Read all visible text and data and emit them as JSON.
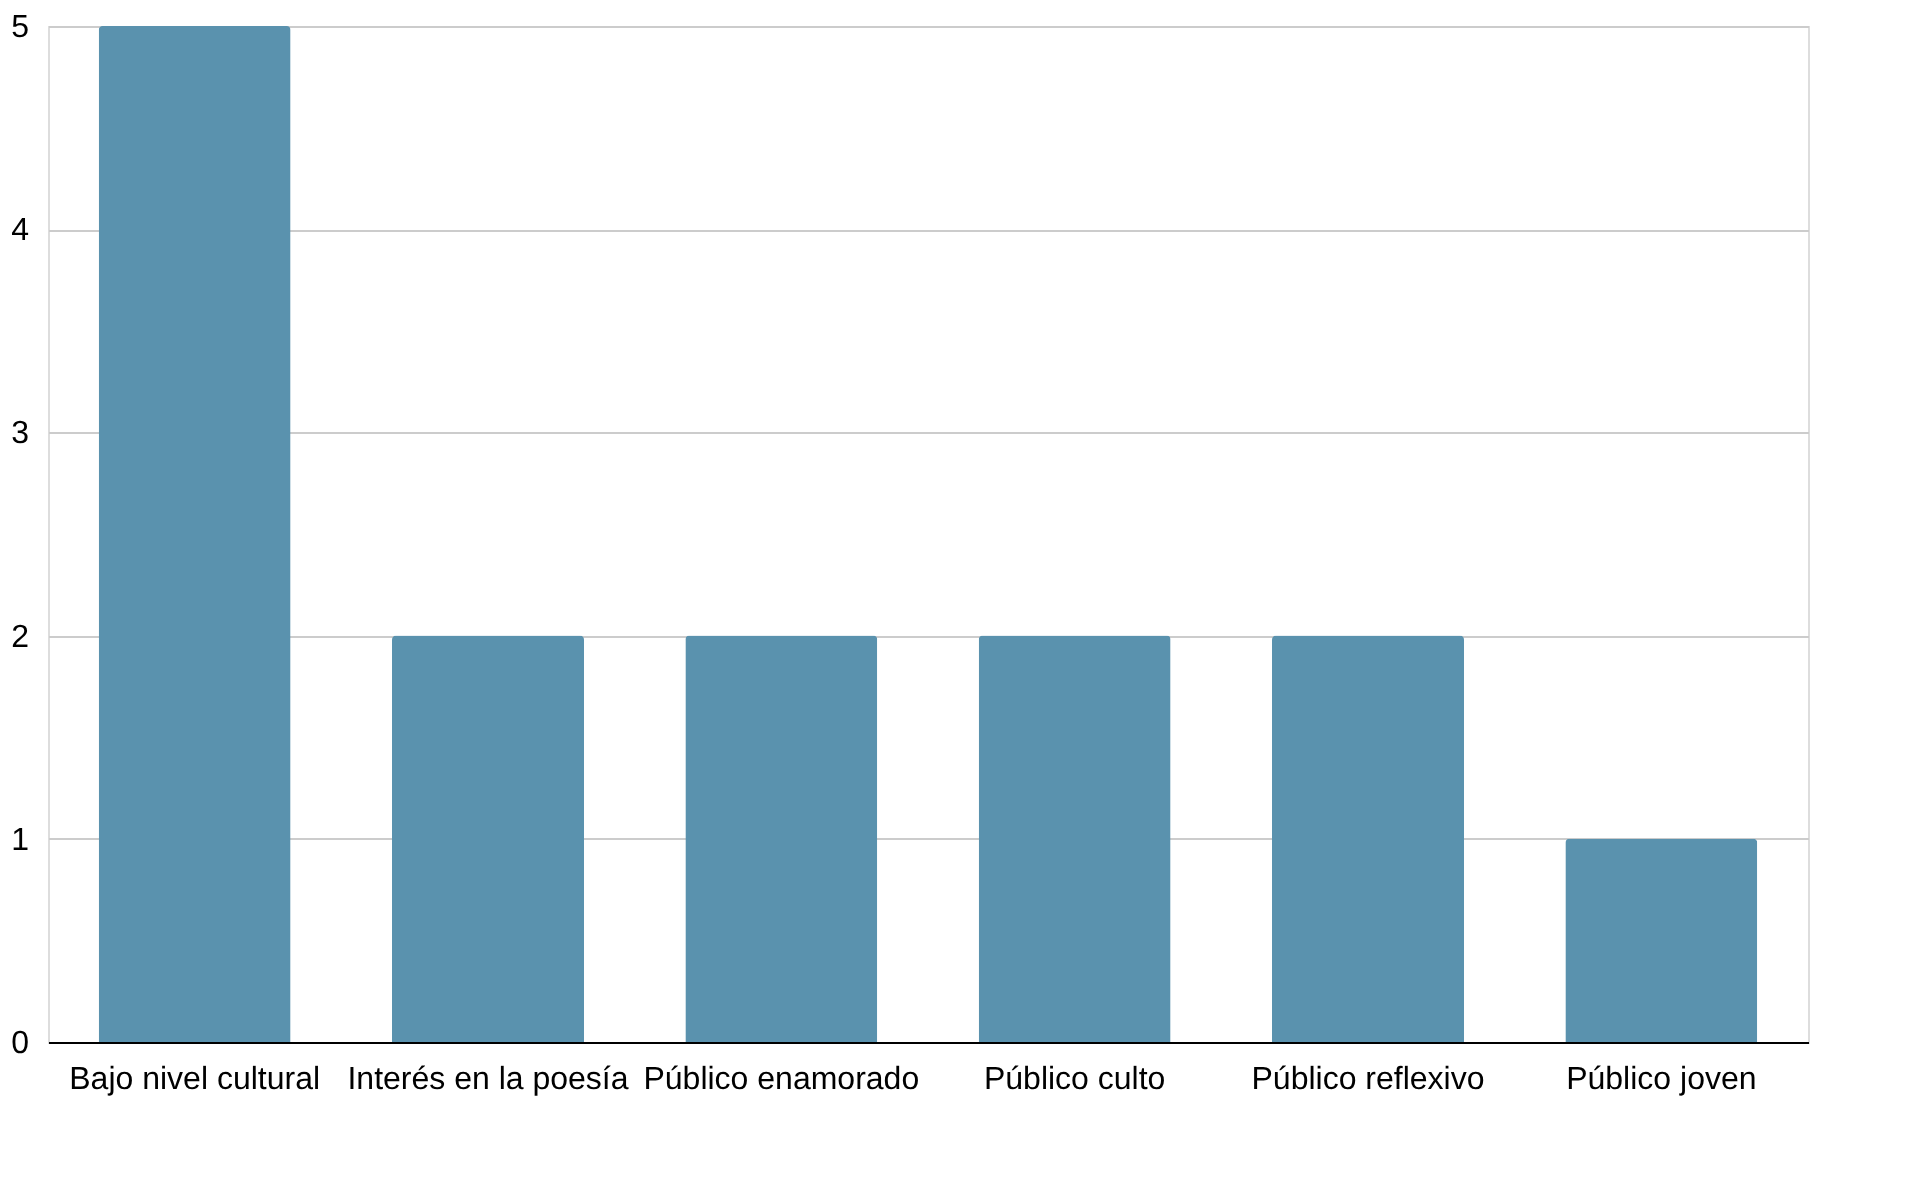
{
  "chart_data": {
    "type": "bar",
    "categories": [
      "Bajo nivel cultural",
      "Interés en la poesía",
      "Público enamorado",
      "Público culto",
      "Público reflexivo",
      "Público joven"
    ],
    "values": [
      5,
      2,
      2,
      2,
      2,
      1
    ],
    "color": "#5a92ae",
    "ylim": [
      0,
      5
    ],
    "yticks": [
      0,
      1,
      2,
      3,
      4,
      5
    ],
    "grid": "y"
  }
}
